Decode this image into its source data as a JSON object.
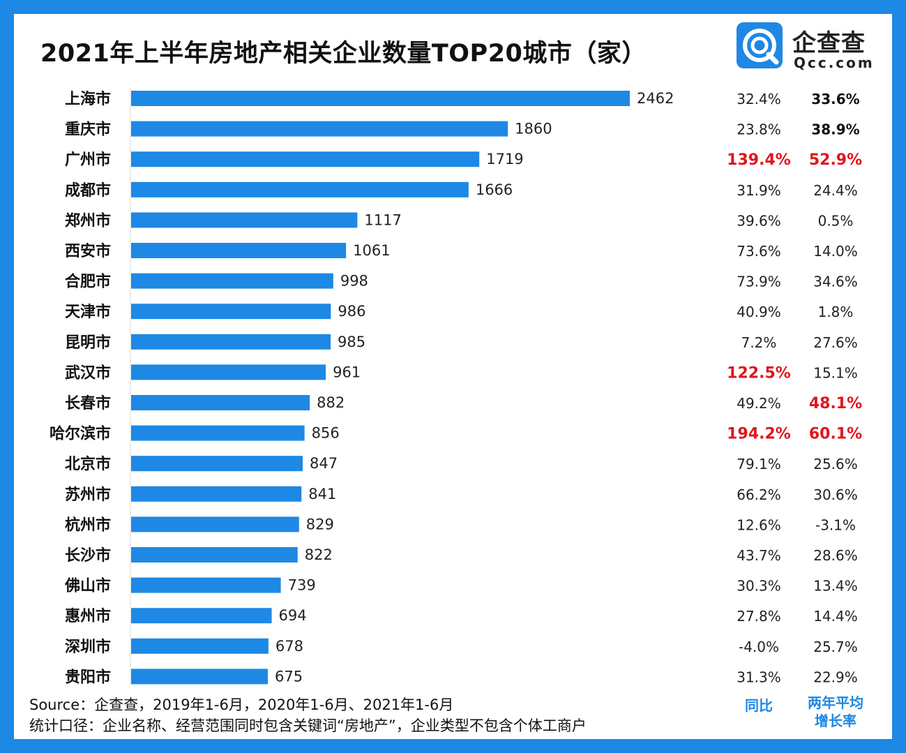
{
  "title": "2021年上半年房地产相关企业数量TOP20城市（家）",
  "logo": {
    "name": "企查查",
    "domain": "Qcc.com"
  },
  "colors": {
    "frame": "#1e88e5",
    "bar": "#1e88e5",
    "highlight": "#e0161e"
  },
  "chart_data": {
    "type": "bar",
    "orientation": "horizontal",
    "categories": [
      "上海市",
      "重庆市",
      "广州市",
      "成都市",
      "郑州市",
      "西安市",
      "合肥市",
      "天津市",
      "昆明市",
      "武汉市",
      "长春市",
      "哈尔滨市",
      "北京市",
      "苏州市",
      "杭州市",
      "长沙市",
      "佛山市",
      "惠州市",
      "深圳市",
      "贵阳市"
    ],
    "values": [
      2462,
      1860,
      1719,
      1666,
      1117,
      1061,
      998,
      986,
      985,
      961,
      882,
      856,
      847,
      841,
      829,
      822,
      739,
      694,
      678,
      675
    ],
    "yoy": [
      "32.4%",
      "23.8%",
      "139.4%",
      "31.9%",
      "39.6%",
      "73.6%",
      "73.9%",
      "40.9%",
      "7.2%",
      "122.5%",
      "49.2%",
      "194.2%",
      "79.1%",
      "66.2%",
      "12.6%",
      "43.7%",
      "30.3%",
      "27.8%",
      "-4.0%",
      "31.3%"
    ],
    "two_year_avg": [
      "33.6%",
      "38.9%",
      "52.9%",
      "24.4%",
      "0.5%",
      "14.0%",
      "34.6%",
      "1.8%",
      "27.6%",
      "15.1%",
      "48.1%",
      "60.1%",
      "25.6%",
      "30.6%",
      "-3.1%",
      "28.6%",
      "13.4%",
      "14.4%",
      "25.7%",
      "22.9%"
    ],
    "yoy_style": [
      "normal",
      "normal",
      "red",
      "normal",
      "normal",
      "normal",
      "normal",
      "normal",
      "normal",
      "red",
      "normal",
      "red",
      "normal",
      "normal",
      "normal",
      "normal",
      "normal",
      "normal",
      "normal",
      "normal"
    ],
    "two_year_style": [
      "bold",
      "bold",
      "red",
      "normal",
      "normal",
      "normal",
      "normal",
      "normal",
      "normal",
      "normal",
      "red",
      "red",
      "normal",
      "normal",
      "normal",
      "normal",
      "normal",
      "normal",
      "normal",
      "normal"
    ],
    "column_headers": {
      "yoy": "同比",
      "two_year_line1": "两年平均",
      "two_year_line2": "增长率"
    },
    "xlim": [
      0,
      2462
    ]
  },
  "notes": {
    "source": "Source：企查查，2019年1-6月，2020年1-6月、2021年1-6月",
    "definition": "统计口径：企业名称、经营范围同时包含关键词“房地产”，企业类型不包含个体工商户"
  }
}
